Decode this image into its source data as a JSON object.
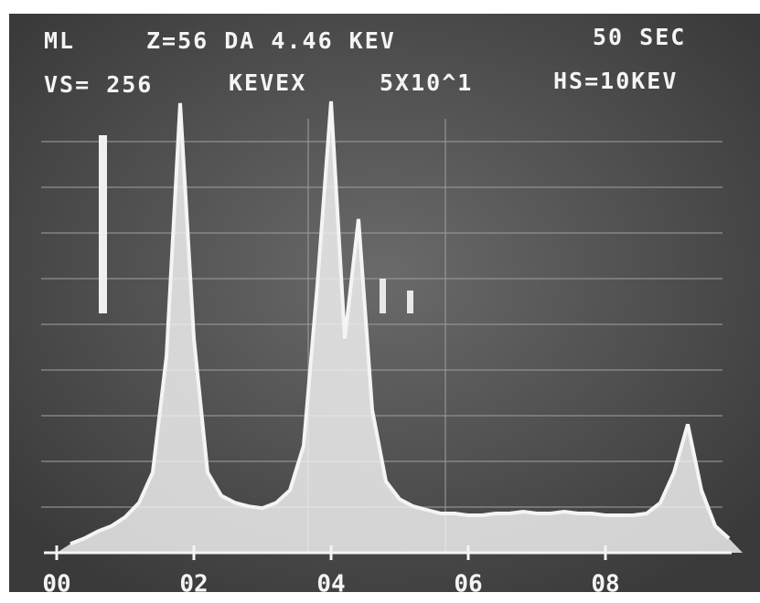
{
  "chart_data": {
    "type": "area",
    "annotations": [
      "ML",
      "Z=56 DA 4.46 KEV",
      "50 SEC",
      "VS= 256",
      "KEVEX",
      "5X10^1",
      "HS=10KEV"
    ],
    "x": [
      0.2,
      0.4,
      0.6,
      0.8,
      1.0,
      1.2,
      1.4,
      1.6,
      1.8,
      2.0,
      2.2,
      2.4,
      2.6,
      2.8,
      3.0,
      3.2,
      3.4,
      3.6,
      3.8,
      4.0,
      4.2,
      4.4,
      4.6,
      4.8,
      5.0,
      5.2,
      5.4,
      5.6,
      5.8,
      6.0,
      6.2,
      6.4,
      6.6,
      6.8,
      7.0,
      7.2,
      7.4,
      7.6,
      7.8,
      8.0,
      8.2,
      8.4,
      8.6,
      8.8,
      9.0,
      9.2,
      9.4,
      9.6,
      9.8
    ],
    "values": [
      5,
      8,
      12,
      15,
      20,
      28,
      45,
      110,
      252,
      120,
      45,
      32,
      28,
      26,
      25,
      28,
      35,
      60,
      150,
      253,
      120,
      187,
      80,
      40,
      30,
      26,
      24,
      22,
      22,
      21,
      21,
      22,
      22,
      23,
      22,
      22,
      23,
      22,
      22,
      21,
      21,
      21,
      22,
      28,
      45,
      72,
      35,
      15,
      8
    ],
    "color": "#f4f4f4",
    "xlim": [
      0,
      10
    ],
    "ylim": [
      0,
      256
    ],
    "xticks": [
      {
        "value": 0,
        "label": "00"
      },
      {
        "value": 2,
        "label": "02"
      },
      {
        "value": 4,
        "label": "04"
      },
      {
        "value": 6,
        "label": "06"
      },
      {
        "value": 8,
        "label": "08"
      }
    ]
  }
}
